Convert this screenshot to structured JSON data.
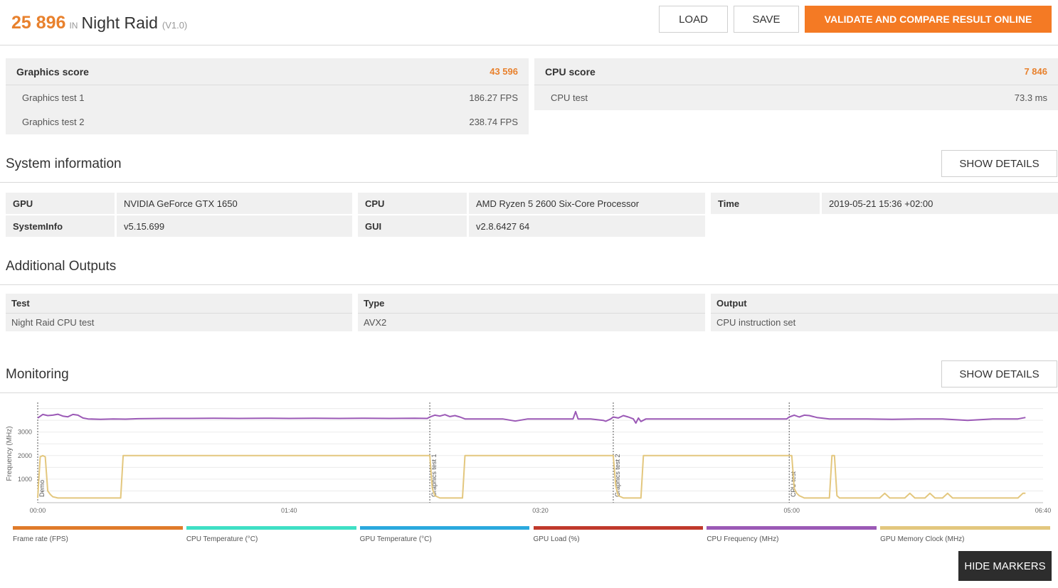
{
  "header": {
    "score": "25 896",
    "in_label": "IN",
    "benchmark": "Night Raid",
    "version": "(V1.0)",
    "load_label": "LOAD",
    "save_label": "SAVE",
    "validate_label": "VALIDATE AND COMPARE RESULT ONLINE"
  },
  "graphics": {
    "label": "Graphics score",
    "value": "43 596",
    "tests": [
      {
        "name": "Graphics test 1",
        "value": "186.27 FPS"
      },
      {
        "name": "Graphics test 2",
        "value": "238.74 FPS"
      }
    ]
  },
  "cpu": {
    "label": "CPU score",
    "value": "7 846",
    "tests": [
      {
        "name": "CPU test",
        "value": "73.3 ms"
      }
    ]
  },
  "system_info": {
    "title": "System information",
    "details_label": "SHOW DETAILS",
    "rows": [
      {
        "k1": "GPU",
        "v1": "NVIDIA GeForce GTX 1650",
        "k2": "CPU",
        "v2": "AMD Ryzen 5 2600 Six-Core Processor",
        "k3": "Time",
        "v3": "2019-05-21 15:36 +02:00"
      },
      {
        "k1": "SystemInfo",
        "v1": "v5.15.699",
        "k2": "GUI",
        "v2": "v2.8.6427 64"
      }
    ]
  },
  "additional_outputs": {
    "title": "Additional Outputs",
    "headers": [
      "Test",
      "Type",
      "Output"
    ],
    "values": [
      "Night Raid CPU test",
      "AVX2",
      "CPU instruction set"
    ]
  },
  "monitoring": {
    "title": "Monitoring",
    "details_label": "SHOW DETAILS",
    "hide_markers_label": "HIDE MARKERS",
    "chart_data": {
      "type": "line",
      "ylabel": "Frequency (MHz)",
      "y_ticks": [
        1000,
        2000,
        3000
      ],
      "ylim": [
        0,
        4200
      ],
      "xlim_seconds": [
        0,
        400
      ],
      "x_ticks": [
        "00:00",
        "01:40",
        "03:20",
        "05:00",
        "06:40"
      ],
      "markers": [
        {
          "label": "Demo",
          "t": 0
        },
        {
          "label": "Graphics test 1",
          "t": 156
        },
        {
          "label": "Graphics test 2",
          "t": 229
        },
        {
          "label": "CPU test",
          "t": 299
        }
      ],
      "series": [
        {
          "name": "CPU Frequency (MHz)",
          "color": "#9b59b6",
          "t": [
            0,
            2,
            4,
            6,
            8,
            10,
            12,
            14,
            16,
            18,
            20,
            25,
            30,
            35,
            40,
            50,
            60,
            70,
            80,
            90,
            100,
            110,
            120,
            130,
            140,
            150,
            155,
            156,
            158,
            160,
            162,
            164,
            166,
            168,
            170,
            175,
            180,
            185,
            190,
            195,
            196,
            197,
            200,
            205,
            210,
            213,
            214,
            215,
            220,
            225,
            226,
            228,
            229,
            231,
            233,
            235,
            237,
            238,
            239,
            240,
            242,
            245,
            250,
            260,
            270,
            280,
            290,
            298,
            299,
            301,
            303,
            305,
            307,
            310,
            315,
            320,
            330,
            340,
            350,
            360,
            370,
            380,
            390,
            393
          ],
          "values": [
            3600,
            3750,
            3700,
            3720,
            3760,
            3680,
            3650,
            3750,
            3720,
            3600,
            3560,
            3540,
            3560,
            3550,
            3570,
            3580,
            3580,
            3590,
            3580,
            3590,
            3580,
            3590,
            3580,
            3590,
            3580,
            3590,
            3580,
            3640,
            3720,
            3680,
            3740,
            3660,
            3700,
            3640,
            3560,
            3560,
            3560,
            3560,
            3470,
            3560,
            3560,
            3560,
            3560,
            3560,
            3560,
            3560,
            3870,
            3560,
            3560,
            3500,
            3460,
            3560,
            3640,
            3600,
            3700,
            3640,
            3560,
            3380,
            3600,
            3450,
            3560,
            3560,
            3560,
            3560,
            3560,
            3560,
            3560,
            3560,
            3640,
            3720,
            3640,
            3720,
            3700,
            3620,
            3560,
            3560,
            3560,
            3540,
            3560,
            3560,
            3500,
            3560,
            3560,
            3620
          ]
        },
        {
          "name": "GPU Memory Clock (MHz)",
          "color": "#e3c77e",
          "t": [
            0,
            1,
            2,
            3,
            4,
            5,
            6,
            8,
            20,
            33,
            34,
            155,
            156,
            157,
            158,
            160,
            166,
            169,
            170,
            228,
            229,
            230,
            231,
            233,
            237,
            240,
            241,
            298,
            299,
            300,
            301,
            302,
            303,
            305,
            315,
            316,
            317,
            318,
            319,
            330,
            335,
            337,
            339,
            345,
            347,
            349,
            353,
            355,
            357,
            360,
            362,
            364,
            390,
            392,
            393
          ],
          "values": [
            200,
            1950,
            2000,
            1950,
            500,
            350,
            250,
            200,
            200,
            200,
            2000,
            2000,
            2000,
            600,
            300,
            200,
            200,
            200,
            2000,
            2000,
            2000,
            700,
            300,
            200,
            200,
            200,
            2000,
            2000,
            2000,
            2000,
            600,
            400,
            300,
            200,
            200,
            2000,
            2000,
            300,
            200,
            200,
            200,
            400,
            200,
            200,
            400,
            200,
            200,
            400,
            200,
            200,
            400,
            200,
            200,
            400,
            400
          ]
        }
      ]
    },
    "legend": [
      {
        "name": "Frame rate (FPS)",
        "color": "#e07b2a"
      },
      {
        "name": "CPU Temperature (°C)",
        "color": "#3fe0c5"
      },
      {
        "name": "GPU Temperature (°C)",
        "color": "#2aa9de"
      },
      {
        "name": "GPU Load (%)",
        "color": "#c0392b"
      },
      {
        "name": "CPU Frequency (MHz)",
        "color": "#9b59b6"
      },
      {
        "name": "GPU Memory Clock (MHz)",
        "color": "#e3c77e"
      }
    ]
  }
}
